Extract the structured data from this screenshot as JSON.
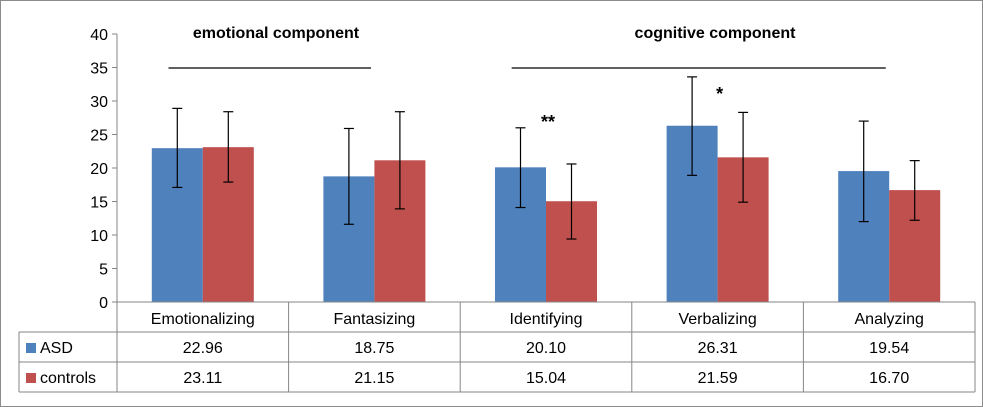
{
  "chart_data": {
    "type": "bar",
    "categories": [
      "Emotionalizing",
      "Fantasizing",
      "Identifying",
      "Verbalizing",
      "Analyzing"
    ],
    "series": [
      {
        "name": "ASD",
        "color": "#4F81BD",
        "values": [
          22.96,
          18.75,
          20.1,
          26.31,
          19.54
        ],
        "error_low": [
          17.1,
          11.6,
          14.1,
          18.9,
          12.0
        ],
        "error_high": [
          28.9,
          25.9,
          26.0,
          33.6,
          27.0
        ],
        "value_labels": [
          "22.96",
          "18.75",
          "20.10",
          "26.31",
          "19.54"
        ]
      },
      {
        "name": "controls",
        "color": "#C0504D",
        "values": [
          23.11,
          21.15,
          15.04,
          21.59,
          16.7
        ],
        "error_low": [
          17.9,
          13.9,
          9.4,
          14.9,
          12.2
        ],
        "error_high": [
          28.4,
          28.4,
          20.6,
          28.3,
          21.1
        ],
        "value_labels": [
          "23.11",
          "21.15",
          "15.04",
          "21.59",
          "16.70"
        ]
      }
    ],
    "ylim": [
      0,
      40
    ],
    "yticks": [
      "0",
      "5",
      "10",
      "15",
      "20",
      "25",
      "30",
      "35",
      "40"
    ],
    "grid": false,
    "legend": "data-table",
    "annotations": [
      {
        "text": "emotional component",
        "spans": [
          "Emotionalizing",
          "Fantasizing"
        ]
      },
      {
        "text": "cognitive component",
        "spans": [
          "Identifying",
          "Analyzing"
        ]
      }
    ],
    "significance": [
      {
        "category": "Identifying",
        "marker": "**"
      },
      {
        "category": "Verbalizing",
        "marker": "*"
      }
    ]
  }
}
